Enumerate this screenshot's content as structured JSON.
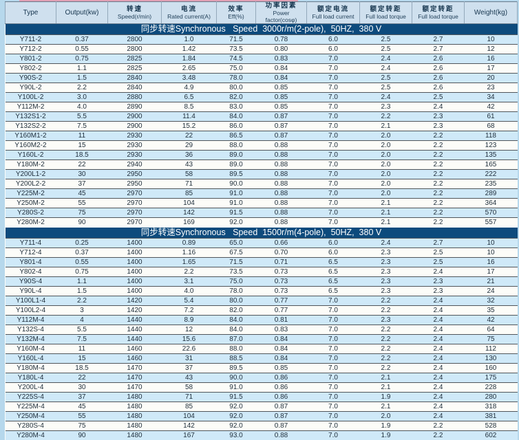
{
  "page": {
    "background_color": "#b6d8ec",
    "banner_color": "#0d4b7d",
    "header_bg_color": "#cfe0ee",
    "row_alt_color": "#cfe9f8",
    "row_plain_color": "#fcfcf8",
    "top_strip_color": "#dfa0b4"
  },
  "table": {
    "header": {
      "cells": [
        {
          "zh": "",
          "en": "Type"
        },
        {
          "zh": "",
          "en": "Output(kw)"
        },
        {
          "zh": "转速",
          "en": "Speed(r/min)"
        },
        {
          "zh": "电流",
          "en": "Rated current(A)"
        },
        {
          "zh": "效率",
          "en": "Eff(%)"
        },
        {
          "zh": "功率因素",
          "en": "Power factor(cosφ)"
        },
        {
          "zh": "额定电流",
          "en": "Full load current"
        },
        {
          "zh": "额定转距",
          "en": "Full load torque"
        },
        {
          "zh": "额定转距",
          "en": "Full load torque"
        },
        {
          "zh": "",
          "en": "Weight(kg)"
        }
      ]
    },
    "sections": [
      {
        "banner": "同步转速Synchronous   Speed  3000r/m(2-pole),  50HZ,  380 V",
        "rows": [
          [
            "Y711-2",
            "0.37",
            "2800",
            "1.0",
            "71.5",
            "0.78",
            "6.0",
            "2.5",
            "2.7",
            "10"
          ],
          [
            "Y712-2",
            "0.55",
            "2800",
            "1.42",
            "73.5",
            "0.80",
            "6.0",
            "2.5",
            "2.7",
            "12"
          ],
          [
            "Y801-2",
            "0.75",
            "2825",
            "1.84",
            "74.5",
            "0.83",
            "7.0",
            "2.4",
            "2.6",
            "16"
          ],
          [
            "Y802-2",
            "1.1",
            "2825",
            "2.65",
            "75.0",
            "0.84",
            "7.0",
            "2.4",
            "2.6",
            "17"
          ],
          [
            "Y90S-2",
            "1.5",
            "2840",
            "3.48",
            "78.0",
            "0.84",
            "7.0",
            "2.5",
            "2.6",
            "20"
          ],
          [
            "Y90L-2",
            "2.2",
            "2840",
            "4.9",
            "80.0",
            "0.85",
            "7.0",
            "2.5",
            "2.6",
            "23"
          ],
          [
            "Y100L-2",
            "3.0",
            "2880",
            "6.5",
            "82.0",
            "0.85",
            "7.0",
            "2.4",
            "2.5",
            "34"
          ],
          [
            "Y112M-2",
            "4.0",
            "2890",
            "8.5",
            "83.0",
            "0.85",
            "7.0",
            "2.3",
            "2.4",
            "42"
          ],
          [
            "Y132S1-2",
            "5.5",
            "2900",
            "11.4",
            "84.0",
            "0.87",
            "7.0",
            "2.2",
            "2.3",
            "61"
          ],
          [
            "Y132S2-2",
            "7.5",
            "2900",
            "15.2",
            "86.0",
            "0.87",
            "7.0",
            "2.1",
            "2.3",
            "68"
          ],
          [
            "Y160M1-2",
            "11",
            "2930",
            "22",
            "86.5",
            "0.87",
            "7.0",
            "2.0",
            "2.2",
            "118"
          ],
          [
            "Y160M2-2",
            "15",
            "2930",
            "29",
            "88.0",
            "0.88",
            "7.0",
            "2.0",
            "2.2",
            "123"
          ],
          [
            "Y160L-2",
            "18.5",
            "2930",
            "36",
            "89.0",
            "0.88",
            "7.0",
            "2.0",
            "2.2",
            "135"
          ],
          [
            "Y180M-2",
            "22",
            "2940",
            "43",
            "89.0",
            "0.88",
            "7.0",
            "2.0",
            "2.2",
            "165"
          ],
          [
            "Y200L1-2",
            "30",
            "2950",
            "58",
            "89.5",
            "0.88",
            "7.0",
            "2.0",
            "2.2",
            "222"
          ],
          [
            "Y200L2-2",
            "37",
            "2950",
            "71",
            "90.0",
            "0.88",
            "7.0",
            "2.0",
            "2.2",
            "235"
          ],
          [
            "Y225M-2",
            "45",
            "2970",
            "85",
            "91.0",
            "0.88",
            "7.0",
            "2.0",
            "2.2",
            "289"
          ],
          [
            "Y250M-2",
            "55",
            "2970",
            "104",
            "91.0",
            "0.88",
            "7.0",
            "2.1",
            "2.2",
            "364"
          ],
          [
            "Y280S-2",
            "75",
            "2970",
            "142",
            "91.5",
            "0.88",
            "7.0",
            "2.1",
            "2.2",
            "570"
          ],
          [
            "Y280M-2",
            "90",
            "2970",
            "169",
            "92.0",
            "0.88",
            "7.0",
            "2.1",
            "2.2",
            "557"
          ]
        ]
      },
      {
        "banner": "同步转速Synchronous   Speed  1500r/m(4-pole),  50HZ,  380 V",
        "rows": [
          [
            "Y711-4",
            "0.25",
            "1400",
            "0.89",
            "65.0",
            "0.66",
            "6.0",
            "2.4",
            "2.7",
            "10"
          ],
          [
            "Y712-4",
            "0.37",
            "1400",
            "1.16",
            "67.5",
            "0.70",
            "6.0",
            "2.3",
            "2.5",
            "10"
          ],
          [
            "Y801-4",
            "0.55",
            "1400",
            "1.65",
            "71.5",
            "0.71",
            "6.5",
            "2.3",
            "2.5",
            "16"
          ],
          [
            "Y802-4",
            "0.75",
            "1400",
            "2.2",
            "73.5",
            "0.73",
            "6.5",
            "2.3",
            "2.4",
            "17"
          ],
          [
            "Y90S-4",
            "1.1",
            "1400",
            "3.1",
            "75.0",
            "0.73",
            "6.5",
            "2.3",
            "2.3",
            "21"
          ],
          [
            "Y90L-4",
            "1.5",
            "1400",
            "4.0",
            "78.0",
            "0.73",
            "6.5",
            "2.3",
            "2.3",
            "24"
          ],
          [
            "Y100L1-4",
            "2.2",
            "1420",
            "5.4",
            "80.0",
            "0.77",
            "7.0",
            "2.2",
            "2.4",
            "32"
          ],
          [
            "Y100L2-4",
            "3",
            "1420",
            "7.2",
            "82.0",
            "0.77",
            "7.0",
            "2.2",
            "2.4",
            "35"
          ],
          [
            "Y112M-4",
            "4",
            "1440",
            "8.9",
            "84.0",
            "0.81",
            "7.0",
            "2.3",
            "2.4",
            "42"
          ],
          [
            "Y132S-4",
            "5.5",
            "1440",
            "12",
            "84.0",
            "0.83",
            "7.0",
            "2.2",
            "2.4",
            "64"
          ],
          [
            "Y132M-4",
            "7.5",
            "1440",
            "15.6",
            "87.0",
            "0.84",
            "7.0",
            "2.2",
            "2.4",
            "75"
          ],
          [
            "Y160M-4",
            "11",
            "1460",
            "22.6",
            "88.0",
            "0.84",
            "7.0",
            "2.2",
            "2.4",
            "112"
          ],
          [
            "Y160L-4",
            "15",
            "1460",
            "31",
            "88.5",
            "0.84",
            "7.0",
            "2.2",
            "2.4",
            "130"
          ],
          [
            "Y180M-4",
            "18.5",
            "1470",
            "37",
            "89.5",
            "0.85",
            "7.0",
            "2.2",
            "2.4",
            "160"
          ],
          [
            "Y180L-4",
            "22",
            "1470",
            "43",
            "90.0",
            "0.86",
            "7.0",
            "2.1",
            "2.4",
            "175"
          ],
          [
            "Y200L-4",
            "30",
            "1470",
            "58",
            "91.0",
            "0.86",
            "7.0",
            "2.1",
            "2.4",
            "228"
          ],
          [
            "Y225S-4",
            "37",
            "1480",
            "71",
            "91.5",
            "0.86",
            "7.0",
            "1.9",
            "2.4",
            "280"
          ],
          [
            "Y225M-4",
            "45",
            "1480",
            "85",
            "92.0",
            "0.87",
            "7.0",
            "2.1",
            "2.4",
            "318"
          ],
          [
            "Y250M-4",
            "55",
            "1480",
            "104",
            "92.0",
            "0.87",
            "7.0",
            "2.0",
            "2.4",
            "381"
          ],
          [
            "Y280S-4",
            "75",
            "1480",
            "142",
            "92.0",
            "0.87",
            "7.0",
            "1.9",
            "2.2",
            "528"
          ],
          [
            "Y280M-4",
            "90",
            "1480",
            "167",
            "93.0",
            "0.88",
            "7.0",
            "1.9",
            "2.2",
            "602"
          ]
        ]
      }
    ]
  }
}
